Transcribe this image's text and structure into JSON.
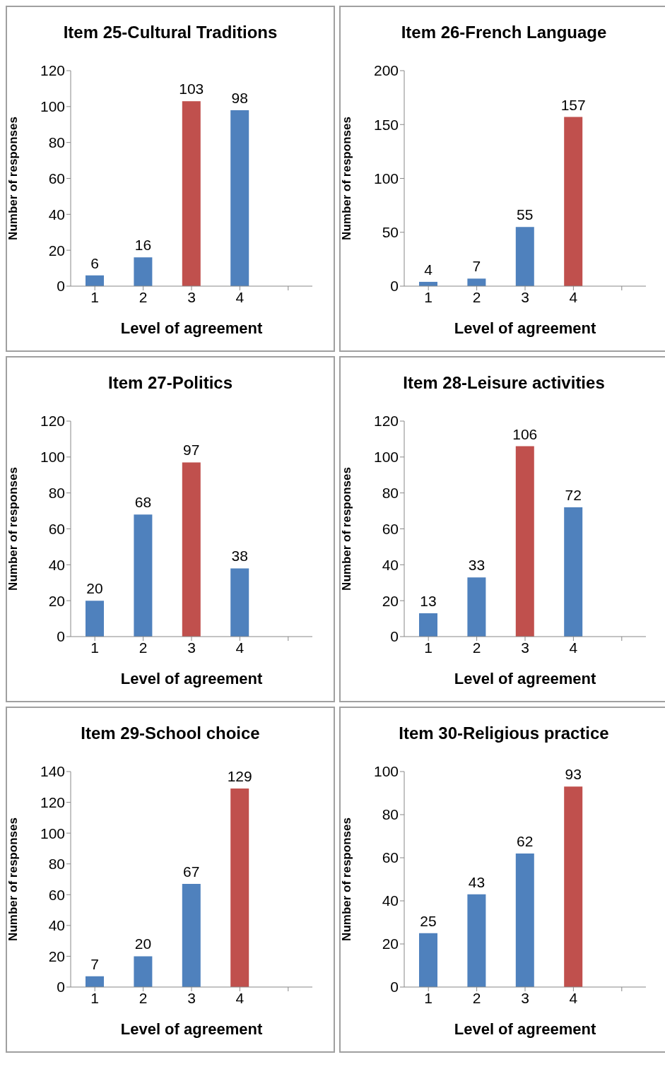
{
  "chart_data": [
    {
      "type": "bar",
      "title": "Item 25-Cultural Traditions",
      "xlabel": "Level of agreement",
      "ylabel": "Number of responses",
      "categories": [
        "1",
        "2",
        "3",
        "4",
        null
      ],
      "values": [
        6,
        16,
        103,
        98,
        null
      ],
      "colors": [
        "#4f81bd",
        "#4f81bd",
        "#c0504d",
        "#4f81bd",
        "#4f81bd"
      ],
      "ylim": [
        0,
        120
      ],
      "yticks": [
        0,
        20,
        40,
        60,
        80,
        100,
        120
      ],
      "data_labels": true
    },
    {
      "type": "bar",
      "title": "Item 26-French Language",
      "xlabel": "Level of agreement",
      "ylabel": "Number of responses",
      "categories": [
        "1",
        "2",
        "3",
        "4",
        null
      ],
      "values": [
        4,
        7,
        55,
        157,
        null
      ],
      "colors": [
        "#4f81bd",
        "#4f81bd",
        "#4f81bd",
        "#c0504d",
        "#4f81bd"
      ],
      "ylim": [
        0,
        200
      ],
      "yticks": [
        0,
        50,
        100,
        150,
        200
      ],
      "data_labels": true
    },
    {
      "type": "bar",
      "title": "Item 27-Politics",
      "xlabel": "Level of agreement",
      "ylabel": "Number of responses",
      "categories": [
        "1",
        "2",
        "3",
        "4",
        null
      ],
      "values": [
        20,
        68,
        97,
        38,
        null
      ],
      "colors": [
        "#4f81bd",
        "#4f81bd",
        "#c0504d",
        "#4f81bd",
        "#4f81bd"
      ],
      "ylim": [
        0,
        120
      ],
      "yticks": [
        0,
        20,
        40,
        60,
        80,
        100,
        120
      ],
      "data_labels": true
    },
    {
      "type": "bar",
      "title": "Item 28-Leisure activities",
      "xlabel": "Level of agreement",
      "ylabel": "Number of responses",
      "categories": [
        "1",
        "2",
        "3",
        "4",
        null
      ],
      "values": [
        13,
        33,
        106,
        72,
        null
      ],
      "colors": [
        "#4f81bd",
        "#4f81bd",
        "#c0504d",
        "#4f81bd",
        "#4f81bd"
      ],
      "ylim": [
        0,
        120
      ],
      "yticks": [
        0,
        20,
        40,
        60,
        80,
        100,
        120
      ],
      "data_labels": true
    },
    {
      "type": "bar",
      "title": "Item 29-School choice",
      "xlabel": "Level of agreement",
      "ylabel": "Number of responses",
      "categories": [
        "1",
        "2",
        "3",
        "4",
        null
      ],
      "values": [
        7,
        20,
        67,
        129,
        null
      ],
      "colors": [
        "#4f81bd",
        "#4f81bd",
        "#4f81bd",
        "#c0504d",
        "#4f81bd"
      ],
      "ylim": [
        0,
        140
      ],
      "yticks": [
        0,
        20,
        40,
        60,
        80,
        100,
        120,
        140
      ],
      "data_labels": true
    },
    {
      "type": "bar",
      "title": "Item 30-Religious practice",
      "xlabel": "Level of agreement",
      "ylabel": "Number of responses",
      "categories": [
        "1",
        "2",
        "3",
        "4",
        null
      ],
      "values": [
        25,
        43,
        62,
        93,
        null
      ],
      "colors": [
        "#4f81bd",
        "#4f81bd",
        "#4f81bd",
        "#c0504d",
        "#4f81bd"
      ],
      "ylim": [
        0,
        100
      ],
      "yticks": [
        0,
        20,
        40,
        60,
        80,
        100
      ],
      "data_labels": true
    }
  ]
}
